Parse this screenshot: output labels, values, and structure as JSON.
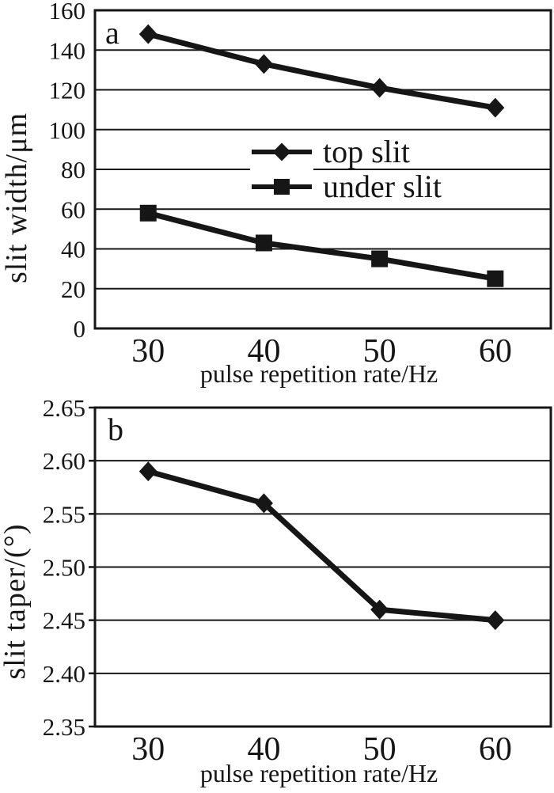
{
  "page": {
    "background": "#ffffff",
    "ink": "#161616"
  },
  "chart_data": [
    {
      "type": "line",
      "panel_label": "a",
      "title": "",
      "xlabel": "pulse repetition rate/Hz",
      "ylabel": "slit width/μm",
      "x": [
        30,
        40,
        50,
        60
      ],
      "xtick_labels": [
        "30",
        "40",
        "50",
        "60"
      ],
      "series": [
        {
          "name": "top slit",
          "marker": "diamond",
          "values": [
            148,
            133,
            121,
            111
          ]
        },
        {
          "name": "under slit",
          "marker": "square",
          "values": [
            58,
            43,
            35,
            25
          ]
        }
      ],
      "xlim": [
        25.4,
        64.8
      ],
      "ylim": [
        0,
        160
      ],
      "ytick_step": 20,
      "ytick_labels": [
        "0",
        "20",
        "40",
        "60",
        "80",
        "100",
        "120",
        "140",
        "160"
      ],
      "grid": "horizontal",
      "ytick_marks": false,
      "legend": {
        "position": "inside-center",
        "entries": [
          "top slit",
          "under slit"
        ]
      }
    },
    {
      "type": "line",
      "panel_label": "b",
      "title": "",
      "xlabel": "pulse repetition rate/Hz",
      "ylabel": "slit taper/(°)",
      "x": [
        30,
        40,
        50,
        60
      ],
      "xtick_labels": [
        "30",
        "40",
        "50",
        "60"
      ],
      "series": [
        {
          "name": "slit taper",
          "marker": "diamond",
          "values": [
            2.59,
            2.56,
            2.46,
            2.45
          ]
        }
      ],
      "xlim": [
        25.4,
        64.8
      ],
      "ylim": [
        2.35,
        2.65
      ],
      "ytick_step": 0.05,
      "ytick_labels": [
        "2.35",
        "2.40",
        "2.45",
        "2.50",
        "2.55",
        "2.60",
        "2.65"
      ],
      "grid": "horizontal",
      "ytick_marks": true,
      "legend": null
    }
  ]
}
